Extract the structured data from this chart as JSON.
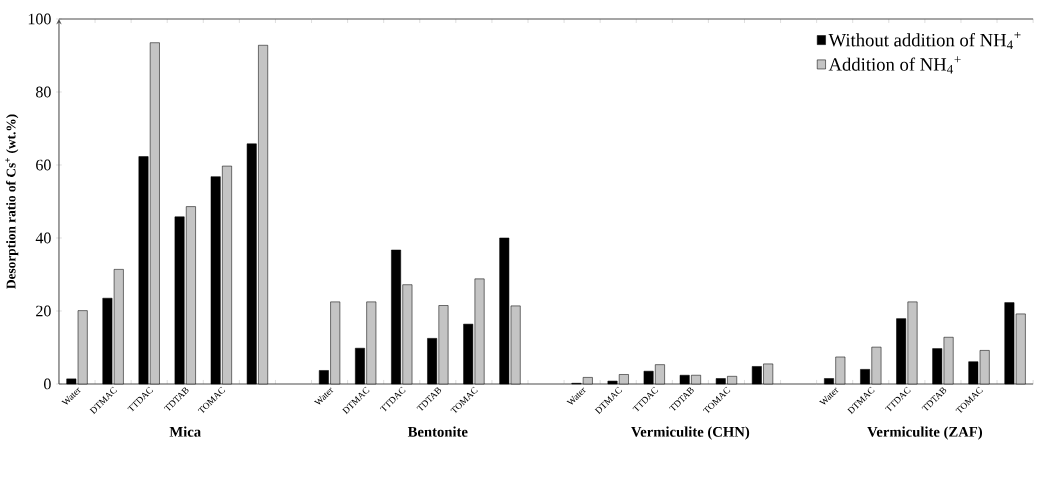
{
  "chart_data": [
    {
      "type": "bar",
      "xlabel": "Mica",
      "ylabel": "Desorption ratio of Cs$^{+}$ (wt.%)",
      "categories": [
        "Water",
        "DTMAC",
        "TTDAC",
        "TDTAB",
        "TOMAC",
        null
      ],
      "ylim": [
        0,
        100
      ],
      "yticks": [
        0,
        20,
        40,
        60,
        80,
        100
      ],
      "legend": false,
      "series": [
        {
          "color": "#000000",
          "values": [
            1.4,
            23.5,
            62.3,
            45.8,
            56.8,
            65.8
          ]
        },
        {
          "color": "#c4c4c4",
          "values": [
            20.1,
            31.4,
            93.5,
            48.6,
            59.7,
            92.8
          ]
        }
      ]
    },
    {
      "type": "bar",
      "xlabel": "Bentonite",
      "categories": [
        "Water",
        "DTMAC",
        "TTDAC",
        "TDTAB",
        "TOMAC",
        null
      ],
      "ylim": [
        0,
        100
      ],
      "tick_labels": "x",
      "legend": false,
      "series": [
        {
          "color": "#000000",
          "values": [
            3.7,
            9.8,
            36.7,
            12.5,
            16.4,
            40.0
          ]
        },
        {
          "color": "#c4c4c4",
          "values": [
            22.5,
            22.5,
            27.2,
            21.5,
            28.8,
            21.4
          ]
        }
      ]
    },
    {
      "type": "bar",
      "xlabel": "Vermiculite (CHN)",
      "categories": [
        "Water",
        "DTMAC",
        "TTDAC",
        "TDTAB",
        "TOMAC",
        null
      ],
      "ylim": [
        0,
        100
      ],
      "tick_labels": "x",
      "legend": false,
      "series": [
        {
          "color": "#000000",
          "values": [
            0.2,
            0.8,
            3.5,
            2.4,
            1.5,
            4.8
          ]
        },
        {
          "color": "#c4c4c4",
          "values": [
            1.8,
            2.6,
            5.3,
            2.4,
            2.1,
            5.5
          ]
        }
      ]
    },
    {
      "type": "bar",
      "xlabel": "Vermiculite (ZAF)",
      "categories": [
        "Water",
        "DTMAC",
        "TTDAC",
        "TDTAB",
        "TOMAC",
        null
      ],
      "ylim": [
        0,
        100
      ],
      "tick_labels": "x",
      "legend": "top right",
      "series": [
        {
          "name": "Without addition of NH$_{4}$$^{+}$",
          "color": "#000000",
          "values": [
            1.5,
            4.0,
            17.9,
            9.7,
            6.1,
            22.3
          ]
        },
        {
          "name": "Addition of NH$_{4}$$^{+}$",
          "color": "#c4c4c4",
          "values": [
            7.4,
            10.1,
            22.5,
            12.8,
            9.2,
            19.2
          ]
        }
      ]
    }
  ]
}
